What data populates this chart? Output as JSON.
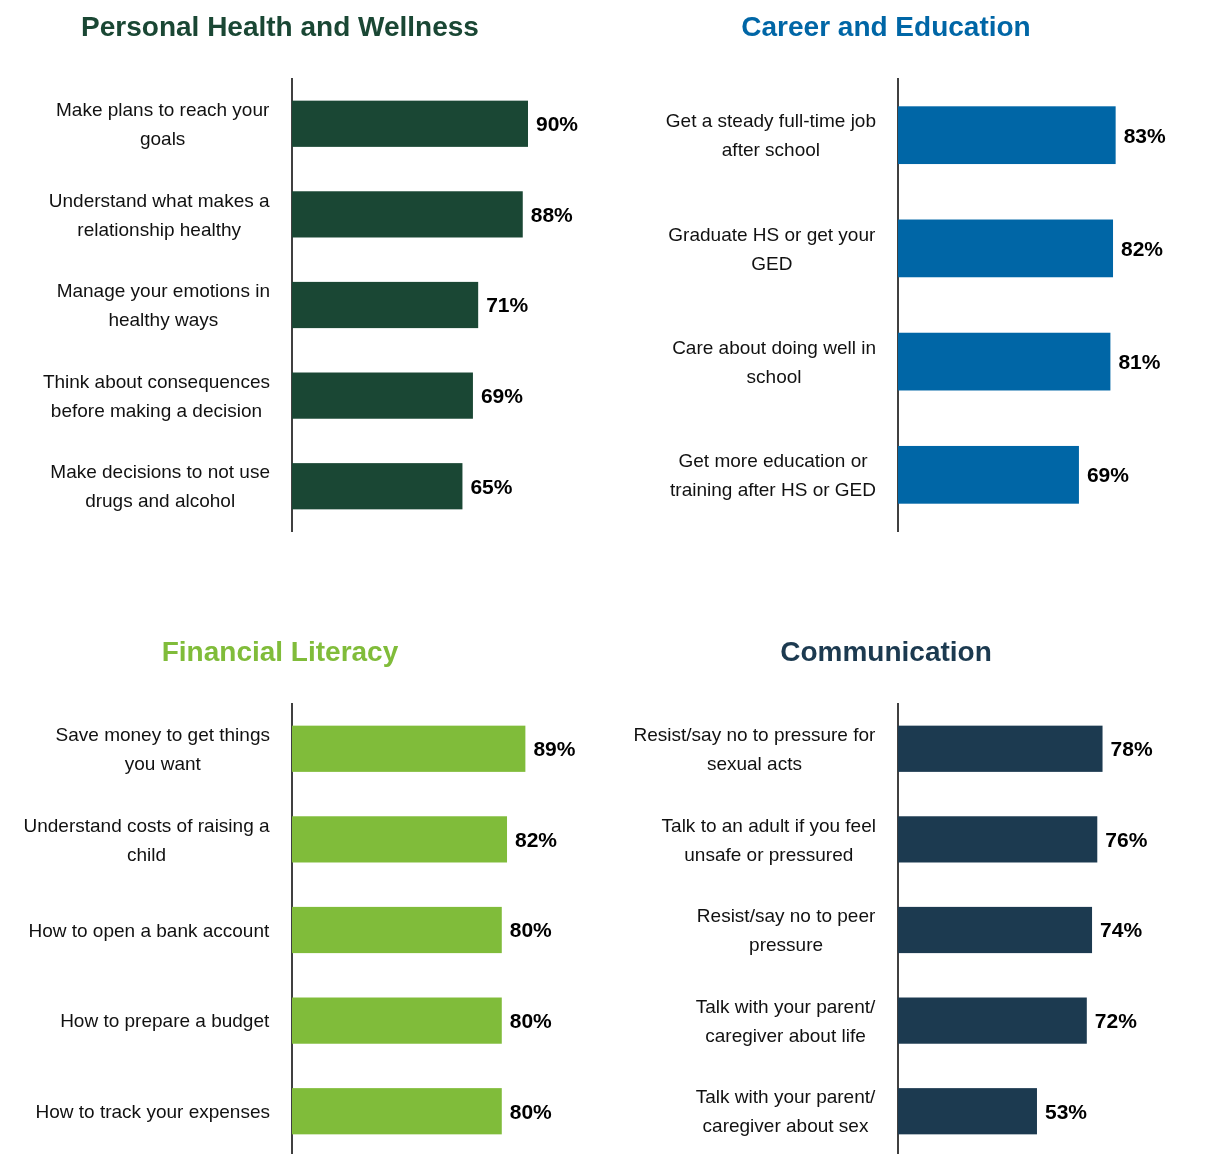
{
  "chart_data": [
    {
      "type": "bar",
      "orientation": "horizontal",
      "title": "Personal Health and Wellness",
      "categories": [
        "Make plans to reach your goals",
        "Understand what makes a relationship healthy",
        "Manage your emotions in healthy ways",
        "Think about consequences before making a decision",
        "Make decisions to not use drugs and alcohol"
      ],
      "values": [
        90,
        88,
        71,
        69,
        65
      ],
      "color": "#1a4734",
      "value_labels": [
        "90%",
        "88%",
        "71%",
        "69%",
        "65%"
      ]
    },
    {
      "type": "bar",
      "orientation": "horizontal",
      "title": "Career and Education",
      "categories": [
        "Get a steady full-time job after school",
        "Graduate HS or get your GED",
        "Care about doing well in school",
        "Get more education or training after HS or GED"
      ],
      "values": [
        83,
        82,
        81,
        69
      ],
      "color": "#0066a6",
      "value_labels": [
        "83%",
        "82%",
        "81%",
        "69%"
      ]
    },
    {
      "type": "bar",
      "orientation": "horizontal",
      "title": "Financial Literacy",
      "categories": [
        "Save money to get things you want",
        "Understand costs of raising a child",
        "How to open a bank account",
        "How to prepare a budget",
        "How to track your expenses"
      ],
      "values": [
        89,
        82,
        80,
        80,
        80
      ],
      "color": "#80bc3a",
      "value_labels": [
        "89%",
        "82%",
        "80%",
        "80%",
        "80%"
      ]
    },
    {
      "type": "bar",
      "orientation": "horizontal",
      "title": "Communication",
      "categories": [
        "Resist/say no to pressure for sexual acts",
        "Talk to an adult if you feel unsafe or pressured",
        "Resist/say no to peer pressure",
        "Talk with your parent/ caregiver about life",
        "Talk with your parent/ caregiver about sex"
      ],
      "values": [
        78,
        76,
        74,
        72,
        53
      ],
      "color": "#1c3a50",
      "value_labels": [
        "78%",
        "76%",
        "74%",
        "72%",
        "53%"
      ]
    }
  ]
}
